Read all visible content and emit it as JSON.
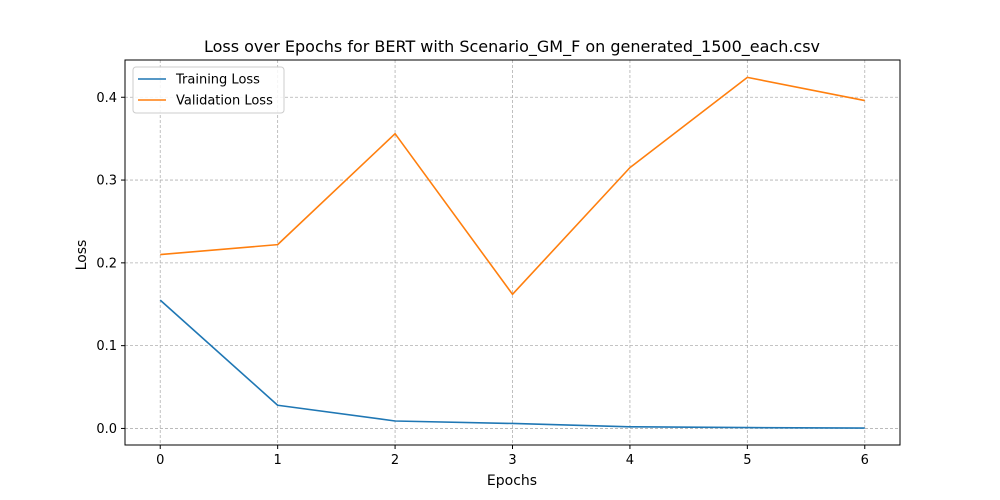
{
  "chart_data": {
    "type": "line",
    "title": "Loss over Epochs for BERT with Scenario_GM_F on generated_1500_each.csv",
    "xlabel": "Epochs",
    "ylabel": "Loss",
    "x": [
      0,
      1,
      2,
      3,
      4,
      5,
      6
    ],
    "xticks": [
      0,
      1,
      2,
      3,
      4,
      5,
      6
    ],
    "yticks": [
      0.0,
      0.1,
      0.2,
      0.3,
      0.4
    ],
    "ytick_labels": [
      "0.0",
      "0.1",
      "0.2",
      "0.3",
      "0.4"
    ],
    "xlim": [
      -0.3,
      6.3
    ],
    "ylim": [
      -0.02,
      0.445
    ],
    "grid": true,
    "legend_position": "top-left",
    "series": [
      {
        "name": "Training Loss",
        "color": "#1f77b4",
        "values": [
          0.155,
          0.028,
          0.009,
          0.006,
          0.002,
          0.001,
          0.0005
        ]
      },
      {
        "name": "Validation Loss",
        "color": "#ff7f0e",
        "values": [
          0.21,
          0.222,
          0.356,
          0.162,
          0.315,
          0.424,
          0.396
        ]
      }
    ]
  }
}
